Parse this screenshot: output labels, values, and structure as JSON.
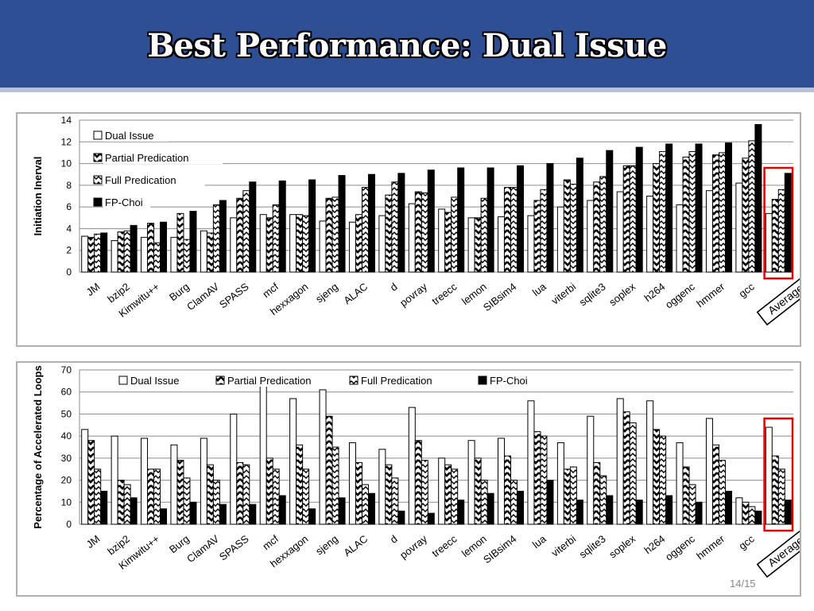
{
  "slide": {
    "title": "Best Performance: Dual Issue",
    "page_number": "14/15"
  },
  "chart_data": [
    {
      "type": "bar",
      "ylabel": "Initiation Inerval",
      "ylim": [
        0,
        14
      ],
      "yticks": [
        0,
        2,
        4,
        6,
        8,
        10,
        12,
        14
      ],
      "grid": true,
      "legend_placement": "top-left",
      "categories": [
        "JM",
        "bzip2",
        "Kimwitu++",
        "Burg",
        "ClamAV",
        "SPASS",
        "mcf",
        "hexxagon",
        "sjeng",
        "ALAC",
        "d",
        "povray",
        "treecc",
        "lemon",
        "SIBsim4",
        "lua",
        "viterbi",
        "sqlite3",
        "soplex",
        "h264",
        "oggenc",
        "hmmer",
        "gcc",
        "Average"
      ],
      "highlighted_category": "Average",
      "series": [
        {
          "name": "Dual Issue",
          "color": "#ffffff",
          "pattern": "white",
          "values": [
            3.3,
            2.9,
            3.2,
            3.2,
            3.8,
            5.0,
            5.3,
            5.3,
            4.7,
            4.6,
            5.2,
            6.3,
            5.8,
            5.0,
            5.1,
            5.2,
            6.0,
            6.6,
            7.4,
            7.0,
            6.2,
            7.5,
            8.2,
            5.4
          ]
        },
        {
          "name": "Partial Predication",
          "color": "#000000",
          "pattern": "zigzag",
          "values": [
            3.2,
            3.7,
            4.5,
            5.4,
            3.6,
            6.8,
            5.0,
            5.3,
            6.8,
            5.3,
            7.1,
            7.4,
            5.5,
            5.0,
            7.8,
            6.6,
            8.5,
            8.3,
            9.8,
            10.0,
            10.6,
            10.8,
            10.5,
            6.7
          ]
        },
        {
          "name": "Full Predication",
          "color": "#000000",
          "pattern": "dots",
          "values": [
            3.5,
            3.8,
            2.7,
            3.0,
            6.2,
            7.5,
            6.2,
            5.2,
            6.9,
            7.8,
            8.3,
            7.3,
            6.9,
            6.8,
            7.8,
            7.6,
            8.1,
            8.8,
            9.8,
            11.1,
            11.1,
            11.0,
            12.1,
            7.6
          ]
        },
        {
          "name": "FP-Choi",
          "color": "#000000",
          "pattern": "solid",
          "values": [
            3.6,
            4.3,
            4.6,
            5.6,
            6.6,
            8.3,
            8.4,
            8.5,
            8.9,
            9.0,
            9.1,
            9.4,
            9.6,
            9.6,
            9.8,
            10.0,
            10.5,
            11.2,
            11.5,
            11.8,
            11.8,
            11.9,
            13.6,
            9.1
          ]
        }
      ]
    },
    {
      "type": "bar",
      "ylabel": "Percentage of Accelerated Loops",
      "ylim": [
        0,
        70
      ],
      "yticks": [
        0,
        10,
        20,
        30,
        40,
        50,
        60,
        70
      ],
      "grid": true,
      "legend_placement": "top",
      "categories": [
        "JM",
        "bzip2",
        "Kimwitu++",
        "Burg",
        "ClamAV",
        "SPASS",
        "mcf",
        "hexxagon",
        "sjeng",
        "ALAC",
        "d",
        "povray",
        "treecc",
        "lemon",
        "SIBsim4",
        "lua",
        "viterbi",
        "sqlite3",
        "soplex",
        "h264",
        "oggenc",
        "hmmer",
        "gcc",
        "Average"
      ],
      "highlighted_category": "Average",
      "series": [
        {
          "name": "Dual Issue",
          "color": "#ffffff",
          "pattern": "white",
          "values": [
            43,
            40,
            39,
            36,
            39,
            50,
            63,
            57,
            61,
            37,
            34,
            53,
            30,
            38,
            39,
            56,
            37,
            49,
            57,
            56,
            37,
            48,
            12,
            44
          ]
        },
        {
          "name": "Partial Predication",
          "color": "#000000",
          "pattern": "zigzag",
          "values": [
            38,
            20,
            25,
            29,
            27,
            28,
            30,
            36,
            49,
            28,
            27,
            38,
            27,
            30,
            31,
            42,
            25,
            28,
            51,
            43,
            26,
            36,
            10,
            31
          ]
        },
        {
          "name": "Full Predication",
          "color": "#000000",
          "pattern": "dots",
          "values": [
            25,
            18,
            25,
            21,
            20,
            27,
            25,
            25,
            35,
            18,
            21,
            29,
            25,
            20,
            20,
            40,
            26,
            22,
            46,
            40,
            18,
            29,
            8,
            25
          ]
        },
        {
          "name": "FP-Choi",
          "color": "#000000",
          "pattern": "solid",
          "values": [
            15,
            12,
            7,
            10,
            9,
            9,
            13,
            7,
            12,
            14,
            6,
            5,
            11,
            14,
            15,
            20,
            11,
            13,
            11,
            13,
            10,
            15,
            6,
            11
          ]
        }
      ]
    }
  ]
}
